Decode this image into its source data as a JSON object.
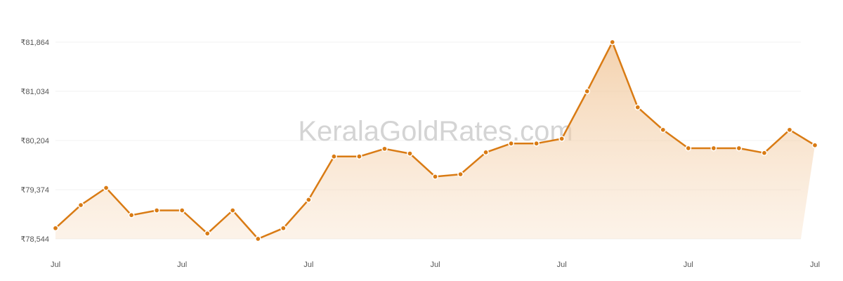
{
  "watermark": "KeralaGoldRates.com",
  "chart_data": {
    "type": "area",
    "title": "",
    "xlabel": "",
    "ylabel": "",
    "ylim": [
      78544,
      81864
    ],
    "y_ticks": [
      78544,
      79374,
      80204,
      81034,
      81864
    ],
    "y_tick_labels": [
      "₹78,544",
      "₹79,374",
      "₹80,204",
      "₹81,034",
      "₹81,864"
    ],
    "x_tick_labels": [
      "Jul",
      "Jul",
      "Jul",
      "Jul",
      "Jul",
      "Jul",
      "Jul"
    ],
    "x_tick_positions": [
      0,
      5,
      10,
      15,
      20,
      25,
      30
    ],
    "grid": true,
    "line_color": "#d97b14",
    "fill_color": "#f3c89a",
    "values": [
      78724,
      79114,
      79404,
      78944,
      79024,
      79024,
      78634,
      79024,
      78544,
      78724,
      79204,
      79934,
      79934,
      80064,
      79984,
      79594,
      79634,
      80004,
      80154,
      80154,
      80234,
      81034,
      81864,
      80764,
      80384,
      80074,
      80074,
      80074,
      79994,
      80384,
      80124
    ]
  }
}
